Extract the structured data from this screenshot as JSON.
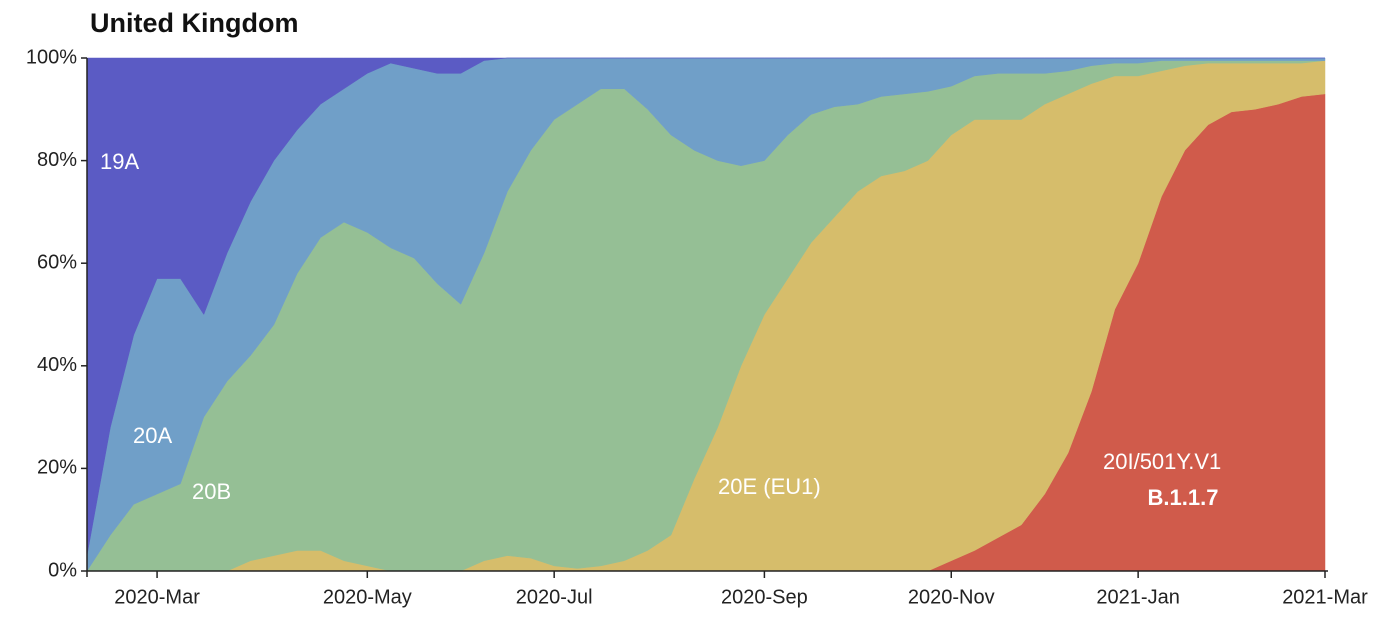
{
  "chart_data": {
    "type": "stacked-area",
    "title": "United Kingdom",
    "categories": [
      null,
      null,
      null,
      "2020-Mar",
      null,
      null,
      null,
      null,
      null,
      null,
      null,
      null,
      "2020-May",
      null,
      null,
      null,
      null,
      null,
      null,
      null,
      "2020-Jul",
      null,
      null,
      null,
      null,
      null,
      null,
      null,
      null,
      "2020-Sep",
      null,
      null,
      null,
      null,
      null,
      null,
      null,
      "2020-Nov",
      null,
      null,
      null,
      null,
      null,
      null,
      null,
      "2021-Jan",
      null,
      null,
      null,
      null,
      null,
      null,
      null,
      "2021-Mar"
    ],
    "ylim": [
      0,
      100
    ],
    "yticks": [
      {
        "value": 0,
        "label": "0%"
      },
      {
        "value": 20,
        "label": "20%"
      },
      {
        "value": 40,
        "label": "40%"
      },
      {
        "value": 60,
        "label": "60%"
      },
      {
        "value": 80,
        "label": "80%"
      },
      {
        "value": 100,
        "label": "100%"
      }
    ],
    "series": [
      {
        "name": "20I/501Y.V1",
        "note": "B.1.1.7",
        "color": "#d05b4b",
        "values": [
          0,
          0,
          0,
          0,
          0,
          0,
          0,
          0,
          0,
          0,
          0,
          0,
          0,
          0,
          0,
          0,
          0,
          0,
          0,
          0,
          0,
          0,
          0,
          0,
          0,
          0,
          0,
          0,
          0,
          0,
          0,
          0,
          0,
          0,
          0,
          0,
          0,
          2,
          4,
          6.5,
          9,
          15,
          23,
          35,
          51,
          60,
          73,
          82,
          87,
          89.5,
          90,
          91,
          92.5,
          93
        ]
      },
      {
        "name": "20E (EU1)",
        "color": "#d6bd6b",
        "values": [
          0,
          0,
          0,
          0,
          0,
          0,
          0,
          2,
          3,
          4,
          4,
          2,
          1,
          0,
          0,
          0,
          0,
          2,
          3,
          2.5,
          1,
          0.5,
          1,
          2,
          4,
          7,
          18,
          28,
          40,
          50,
          57,
          64,
          69,
          74,
          77,
          78,
          80,
          83,
          84,
          81.5,
          79,
          76,
          70,
          60,
          45.5,
          36.5,
          24.5,
          16.5,
          12,
          9.5,
          9,
          8,
          6.5,
          6.5
        ]
      },
      {
        "name": "20B",
        "color": "#95bf95",
        "values": [
          0,
          7,
          13,
          15,
          17,
          30,
          37,
          40,
          45,
          54,
          61,
          66,
          65,
          63,
          61,
          56,
          52,
          60,
          71,
          79.5,
          87,
          90.5,
          93,
          92,
          86,
          78,
          64,
          52,
          39,
          30,
          28,
          25,
          21.5,
          17,
          15.5,
          15,
          13.5,
          9.5,
          8.5,
          9,
          9,
          6,
          4.5,
          3.5,
          2.5,
          2.5,
          2,
          1,
          0.5,
          0.5,
          0.5,
          0.5,
          0.5,
          0
        ]
      },
      {
        "name": "20A",
        "color": "#709fc8",
        "values": [
          3,
          21,
          33,
          42,
          40,
          20,
          25,
          30,
          32,
          28,
          26,
          26,
          31,
          36,
          37,
          41,
          45,
          37.5,
          26,
          18,
          12,
          9,
          6,
          6,
          10,
          15,
          18,
          20,
          21,
          20,
          15,
          11,
          9.5,
          9,
          7.5,
          7,
          6.5,
          5.5,
          3.5,
          3,
          3,
          3,
          2.5,
          1.5,
          1,
          1,
          0.5,
          0.5,
          0.5,
          0.5,
          0.5,
          0.5,
          0.5,
          0.5
        ]
      },
      {
        "name": "19A",
        "color": "#5b5bc4",
        "values": [
          97,
          72,
          54,
          43,
          43,
          50,
          38,
          28,
          20,
          14,
          9,
          6,
          3,
          1,
          2,
          3,
          3,
          0.5,
          0,
          0,
          0,
          0,
          0,
          0,
          0,
          0,
          0,
          0,
          0,
          0,
          0,
          0,
          0,
          0,
          0,
          0,
          0,
          0,
          0,
          0,
          0,
          0,
          0,
          0,
          0,
          0,
          0,
          0,
          0,
          0,
          0,
          0,
          0,
          0
        ]
      }
    ]
  }
}
